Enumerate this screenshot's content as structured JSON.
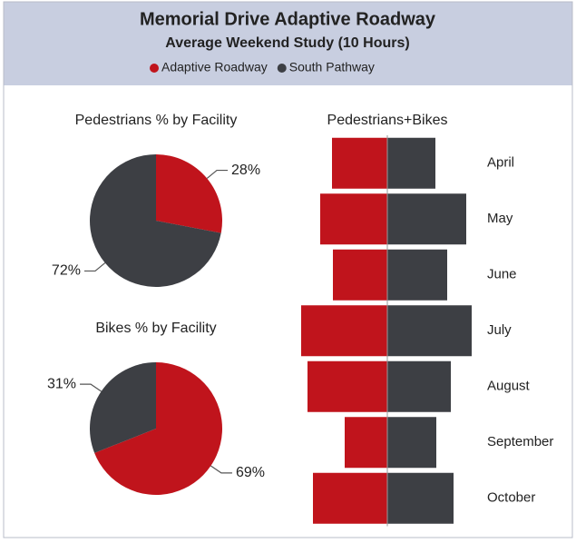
{
  "title": "Memorial Drive Adaptive Roadway",
  "subtitle": "Average Weekend Study (10 Hours)",
  "chart_data": [
    {
      "type": "pie",
      "title": "Pedestrians % by Facility",
      "values": [
        28,
        72
      ],
      "value_labels": [
        "28%",
        "72%"
      ],
      "colors": [
        "#c0141c",
        "#3d3f44"
      ]
    },
    {
      "type": "pie",
      "title": "Bikes % by Facility",
      "values": [
        69,
        31
      ],
      "value_labels": [
        "69%",
        "31%"
      ],
      "colors": [
        "#c0141c",
        "#3d3f44"
      ]
    },
    {
      "type": "diverging_bar",
      "title": "Pedestrians+Bikes",
      "categories": [
        "April",
        "May",
        "June",
        "July",
        "August",
        "September",
        "October"
      ],
      "series": [
        {
          "name": "Adaptive Roadway",
          "color": "#c0141c",
          "values": [
            61,
            74,
            60,
            95,
            88,
            47,
            82
          ]
        },
        {
          "name": "South Pathway",
          "color": "#3d3f44",
          "values": [
            53,
            87,
            66,
            93,
            70,
            54,
            73
          ]
        }
      ],
      "xlim": [
        -100,
        100
      ]
    }
  ]
}
